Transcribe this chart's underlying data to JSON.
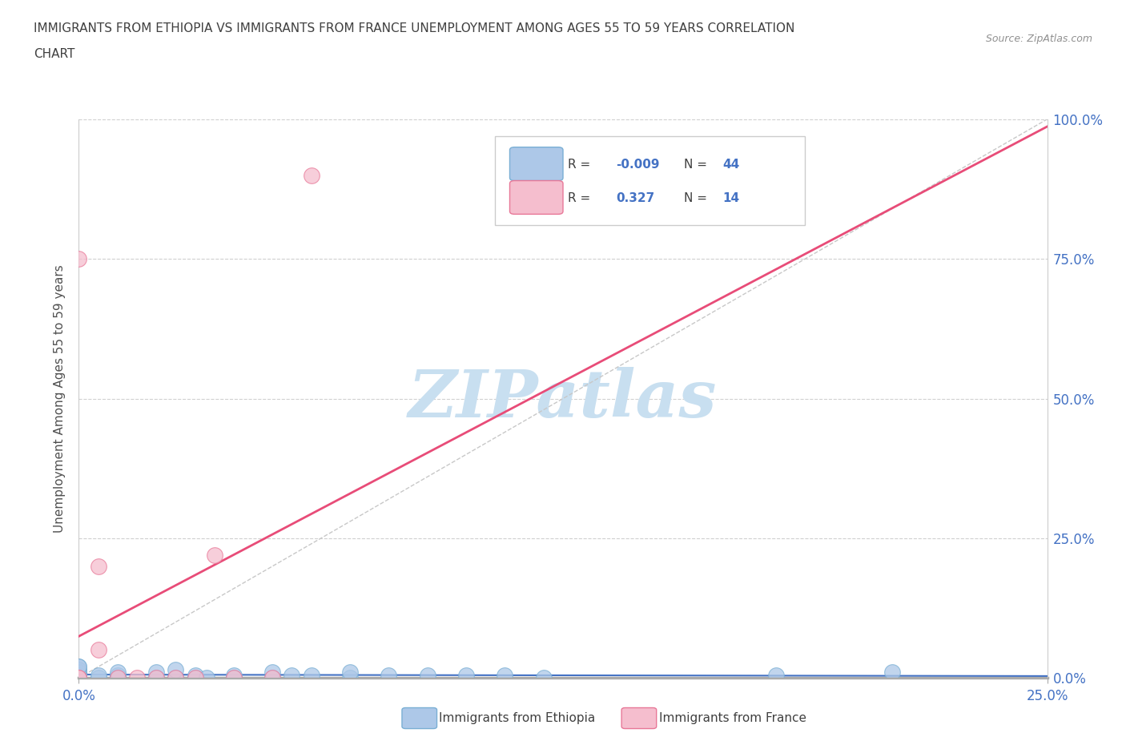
{
  "title_line1": "IMMIGRANTS FROM ETHIOPIA VS IMMIGRANTS FROM FRANCE UNEMPLOYMENT AMONG AGES 55 TO 59 YEARS CORRELATION",
  "title_line2": "CHART",
  "source_text": "Source: ZipAtlas.com",
  "ylabel": "Unemployment Among Ages 55 to 59 years",
  "xlim": [
    0.0,
    0.25
  ],
  "ylim": [
    0.0,
    1.0
  ],
  "xtick_labels": [
    "0.0%",
    "25.0%"
  ],
  "xtick_positions": [
    0.0,
    0.25
  ],
  "ytick_labels_right": [
    "0.0%",
    "25.0%",
    "50.0%",
    "75.0%",
    "100.0%"
  ],
  "ytick_positions": [
    0.0,
    0.25,
    0.5,
    0.75,
    1.0
  ],
  "ethiopia_color": "#adc8e8",
  "ethiopia_edge": "#7aafd4",
  "france_color": "#f5bece",
  "france_edge": "#e87898",
  "diagonal_color": "#c8c8c8",
  "trend_ethiopia_color": "#4472c4",
  "trend_france_color": "#e84c78",
  "watermark_color": "#c8dff0",
  "R_ethiopia": -0.009,
  "N_ethiopia": 44,
  "R_france": 0.327,
  "N_france": 14,
  "ethiopia_x": [
    0.0,
    0.0,
    0.0,
    0.0,
    0.0,
    0.0,
    0.0,
    0.0,
    0.0,
    0.0,
    0.0,
    0.0,
    0.0,
    0.0,
    0.0,
    0.0,
    0.005,
    0.005,
    0.01,
    0.01,
    0.01,
    0.01,
    0.02,
    0.02,
    0.025,
    0.025,
    0.03,
    0.03,
    0.033,
    0.04,
    0.04,
    0.05,
    0.05,
    0.055,
    0.06,
    0.07,
    0.07,
    0.08,
    0.09,
    0.1,
    0.11,
    0.12,
    0.18,
    0.21
  ],
  "ethiopia_y": [
    0.0,
    0.0,
    0.0,
    0.0,
    0.0,
    0.005,
    0.005,
    0.01,
    0.01,
    0.01,
    0.01,
    0.01,
    0.015,
    0.015,
    0.02,
    0.02,
    0.0,
    0.005,
    0.0,
    0.0,
    0.005,
    0.01,
    0.0,
    0.01,
    0.0,
    0.015,
    0.0,
    0.005,
    0.0,
    0.0,
    0.005,
    0.0,
    0.01,
    0.005,
    0.005,
    0.0,
    0.01,
    0.005,
    0.005,
    0.005,
    0.005,
    0.0,
    0.005,
    0.01
  ],
  "france_x": [
    0.0,
    0.0,
    0.0,
    0.005,
    0.005,
    0.01,
    0.015,
    0.02,
    0.025,
    0.03,
    0.035,
    0.04,
    0.05,
    0.06
  ],
  "france_y": [
    0.0,
    0.0,
    0.75,
    0.2,
    0.05,
    0.0,
    0.0,
    0.0,
    0.0,
    0.0,
    0.22,
    0.0,
    0.0,
    0.9
  ]
}
